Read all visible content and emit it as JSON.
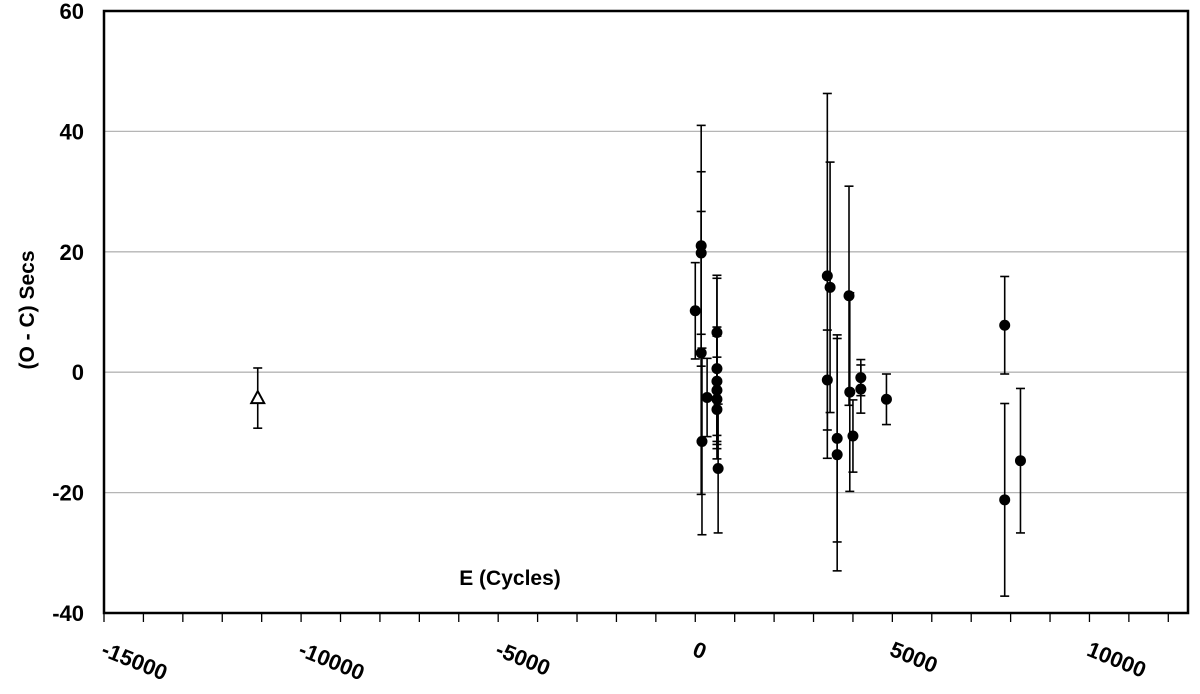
{
  "chart_data": {
    "type": "scatter",
    "title": "",
    "xlabel": "E (Cycles)",
    "ylabel": "(O - C) Secs",
    "xlim": [
      -15000,
      12500
    ],
    "ylim": [
      -40,
      60
    ],
    "x_ticks": [
      -15000,
      -10000,
      -5000,
      0,
      5000,
      10000
    ],
    "x_tick_labels": [
      "-15000",
      "-10000",
      "-5000",
      "0",
      "5000",
      "10000"
    ],
    "y_ticks": [
      -40,
      -20,
      0,
      20,
      40,
      60
    ],
    "y_tick_labels": [
      "-40",
      "-20",
      "0",
      "20",
      "40",
      "60"
    ],
    "grid": "horizontal",
    "series": [
      {
        "marker": "open-triangle",
        "points": [
          {
            "x": -11100,
            "y": -4.3,
            "err": 5.0
          }
        ]
      },
      {
        "marker": "filled-circle",
        "points": [
          {
            "x": 0,
            "y": 10.2,
            "err": 8.0
          },
          {
            "x": 150,
            "y": 21.0,
            "err": 20.0
          },
          {
            "x": 150,
            "y": 19.8,
            "err": 13.5
          },
          {
            "x": 150,
            "y": 3.2,
            "err": 23.5
          },
          {
            "x": 170,
            "y": -11.5,
            "err": 15.5
          },
          {
            "x": 300,
            "y": -4.2,
            "err": 6.5
          },
          {
            "x": 550,
            "y": 6.6,
            "err": 9.5
          },
          {
            "x": 550,
            "y": 0.6,
            "err": 15.0
          },
          {
            "x": 550,
            "y": -1.5,
            "err": 9.0
          },
          {
            "x": 550,
            "y": -3.0,
            "err": 9.0
          },
          {
            "x": 550,
            "y": -4.5,
            "err": 7.0
          },
          {
            "x": 550,
            "y": -6.2,
            "err": 6.5
          },
          {
            "x": 580,
            "y": -16.0,
            "err": 10.7
          },
          {
            "x": 3350,
            "y": 16.0,
            "err": 30.3
          },
          {
            "x": 3350,
            "y": -1.3,
            "err": 8.3
          },
          {
            "x": 3420,
            "y": 14.1,
            "err": 20.8
          },
          {
            "x": 3600,
            "y": -11.0,
            "err": 17.2
          },
          {
            "x": 3600,
            "y": -13.7,
            "err": 19.3
          },
          {
            "x": 3900,
            "y": 12.7,
            "err": 18.2
          },
          {
            "x": 3920,
            "y": -3.3,
            "err": 16.5
          },
          {
            "x": 4000,
            "y": -10.6,
            "err": 6.0
          },
          {
            "x": 4200,
            "y": -0.9,
            "err": 3.0
          },
          {
            "x": 4200,
            "y": -2.8,
            "err": 4.0
          },
          {
            "x": 4850,
            "y": -4.5,
            "err": 4.2
          },
          {
            "x": 7850,
            "y": 7.8,
            "err": 8.1
          },
          {
            "x": 7850,
            "y": -21.2,
            "err": 16.0
          },
          {
            "x": 8250,
            "y": -14.7,
            "err": 12.0
          }
        ]
      }
    ]
  }
}
